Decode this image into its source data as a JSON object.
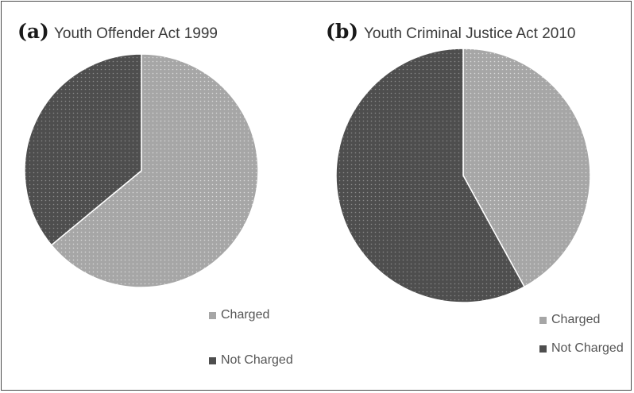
{
  "colors": {
    "charged": "#a6a6a6",
    "not_charged": "#4e4e4e",
    "dots_on_light": "#d9d9d9",
    "dots_on_dark": "#8a8a8a",
    "border": "#4a4a4a"
  },
  "chart_data": [
    {
      "type": "pie",
      "panel": "(a)",
      "title": "Youth Offender Act 1999",
      "slices": [
        {
          "label": "Charged",
          "value": 64
        },
        {
          "label": "Not Charged",
          "value": 36
        }
      ],
      "legend": [
        "Charged",
        "Not Charged"
      ],
      "legend_position": "bottom-right"
    },
    {
      "type": "pie",
      "panel": "(b)",
      "title": "Youth Criminal Justice Act  2010",
      "slices": [
        {
          "label": "Charged",
          "value": 42
        },
        {
          "label": "Not Charged",
          "value": 58
        }
      ],
      "legend": [
        "Charged",
        "Not Charged"
      ],
      "legend_position": "bottom-right"
    }
  ]
}
